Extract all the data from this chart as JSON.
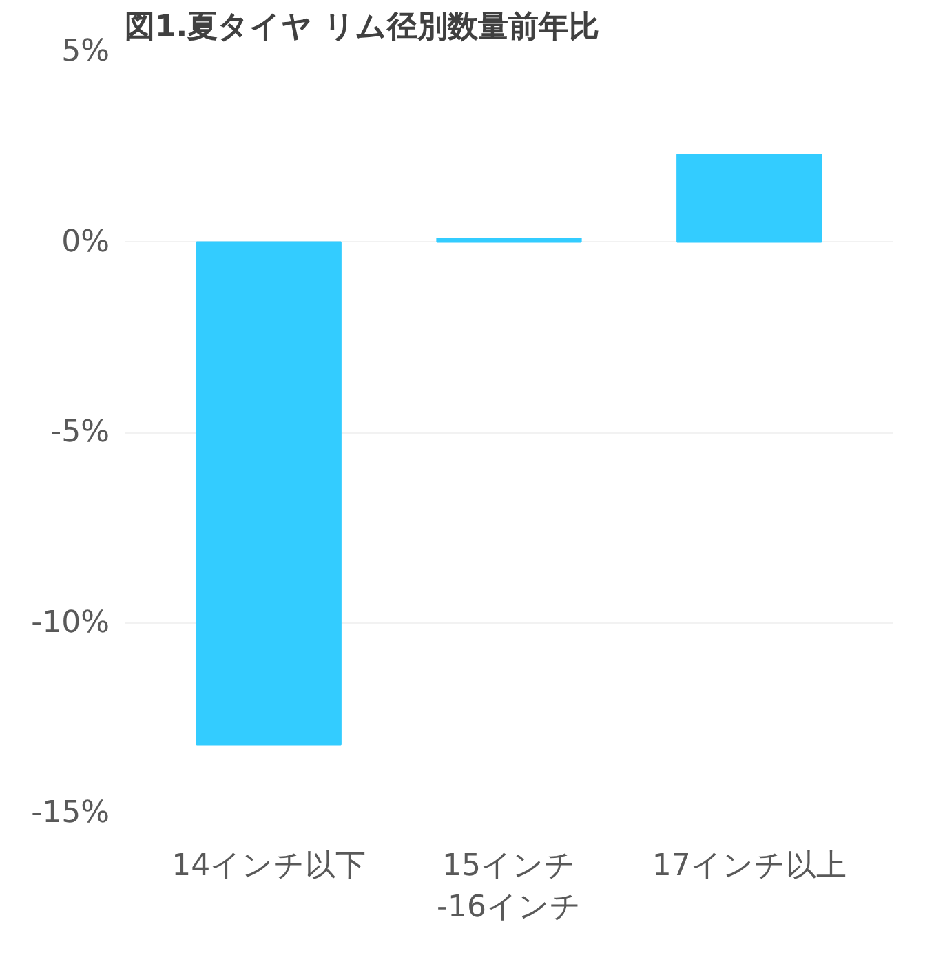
{
  "chart_data": {
    "type": "bar",
    "title": "図1.夏タイヤ リム径別数量前年比",
    "categories": [
      "14インチ以下",
      "15インチ\n-16インチ",
      "17インチ以上"
    ],
    "values": [
      -13.2,
      0.1,
      2.3
    ],
    "color": "#33ccff",
    "ylim": [
      -15,
      5
    ],
    "yticks": [
      {
        "value": 5,
        "label": "5%"
      },
      {
        "value": 0,
        "label": "0%"
      },
      {
        "value": -5,
        "label": "-5%"
      },
      {
        "value": -10,
        "label": "-10%"
      },
      {
        "value": -15,
        "label": "-15%"
      }
    ],
    "grid": "y"
  }
}
